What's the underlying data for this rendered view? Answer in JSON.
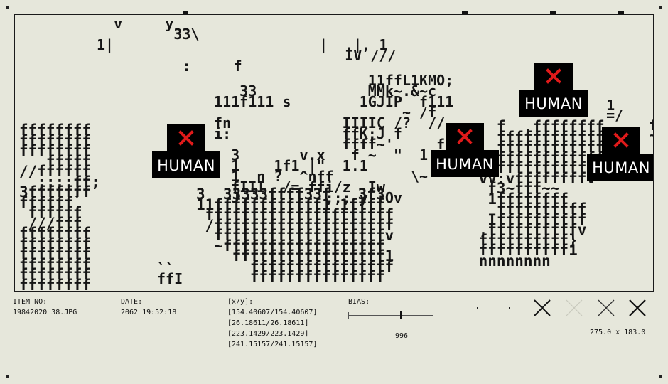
{
  "viewer": {
    "badge_label": "HUMAN",
    "badge_mark_icon": "red-x-icon",
    "mark_color": "#e01a1a",
    "badges": [
      {
        "id": "badge-1",
        "label": "HUMAN"
      },
      {
        "id": "badge-2",
        "label": "HUMAN"
      },
      {
        "id": "badge-3",
        "label": "HUMAN"
      },
      {
        "id": "badge-4",
        "label": "HUMAN"
      }
    ]
  },
  "footer": {
    "item_label": "ITEM NO:",
    "item_value": "19842020_38.JPG",
    "date_label": "DATE:",
    "date_value": "2062_19:52:18",
    "xy_label": "[x/y]:",
    "xy_rows": [
      "[154.40607/154.40607]",
      "[26.18611/26.18611]",
      "[223.1429/223.1429]",
      "[241.15157/241.15157]"
    ],
    "bias_label": "BIAS:",
    "bias_value": "996",
    "bias_level": 0.62,
    "dimensions": "275.0 x 183.0",
    "icons": [
      "dot-icon",
      "dot-icon",
      "x-mark-icon",
      "x-mark-faded-icon",
      "x-mark-icon",
      "x-mark-icon"
    ]
  }
}
